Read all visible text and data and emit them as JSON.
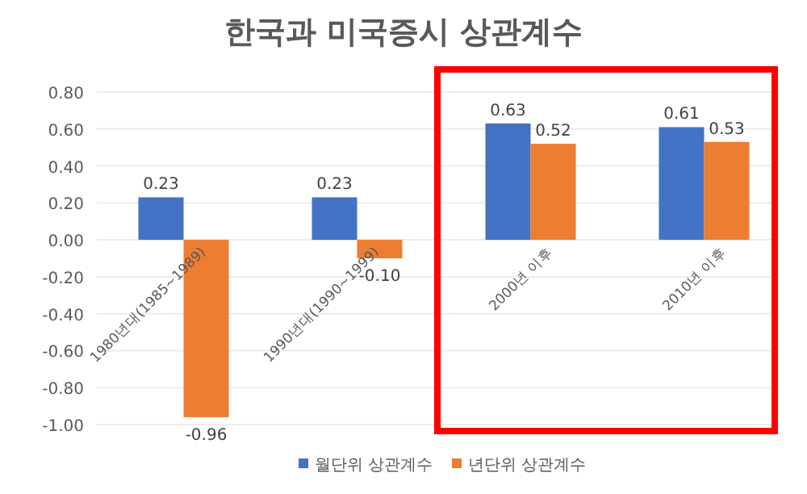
{
  "chart_data": {
    "type": "bar",
    "title": "한국과 미국증시 상관계수",
    "categories": [
      "1980년대(1985~1989)",
      "1990년대(1990~1999)",
      "2000년 이후",
      "2010년 이후"
    ],
    "series": [
      {
        "name": "월단위 상관계수",
        "color": "#4472c4",
        "values": [
          0.23,
          0.23,
          0.63,
          0.61
        ]
      },
      {
        "name": "년단위 상관계수",
        "color": "#ed7d31",
        "values": [
          -0.96,
          -0.1,
          0.52,
          0.53
        ]
      }
    ],
    "ylim": [
      -1.0,
      0.8
    ],
    "yticks": [
      {
        "value": -1.0,
        "label": "-1.00"
      },
      {
        "value": -0.8,
        "label": "-0.80"
      },
      {
        "value": -0.6,
        "label": "-0.60"
      },
      {
        "value": -0.4,
        "label": "-0.40"
      },
      {
        "value": -0.2,
        "label": "-0.20"
      },
      {
        "value": 0,
        "label": "0.00"
      },
      {
        "value": 0.2,
        "label": "0.20"
      },
      {
        "value": 0.4,
        "label": "0.40"
      },
      {
        "value": 0.6,
        "label": "0.60"
      },
      {
        "value": 0.8,
        "label": "0.80"
      }
    ],
    "value_labels": [
      [
        "0.23",
        "0.23",
        "0.63",
        "0.61"
      ],
      [
        "-0.96",
        "-0.10",
        "0.52",
        "0.53"
      ]
    ],
    "grid": "y",
    "legend": "bottom"
  }
}
